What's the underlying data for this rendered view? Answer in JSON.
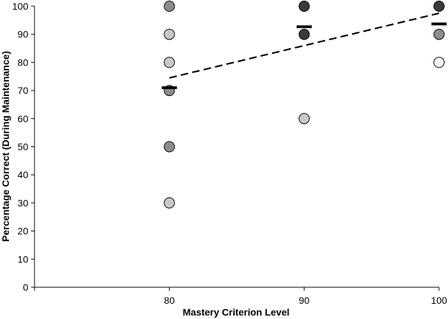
{
  "chart_data": {
    "type": "scatter",
    "title": "",
    "xlabel": "Mastery Criterion Level",
    "ylabel": "Percentage Correct (During Maintenance)",
    "x_ticks": [
      "80",
      "90",
      "100"
    ],
    "y_ticks": [
      "0",
      "10",
      "20",
      "30",
      "40",
      "50",
      "60",
      "70",
      "80",
      "90",
      "100"
    ],
    "xlim": [
      70,
      100
    ],
    "ylim": [
      0,
      100
    ],
    "grid": false,
    "legend": "none",
    "points": [
      {
        "x": 80,
        "y": 100,
        "color": "#8c8c8c"
      },
      {
        "x": 80,
        "y": 90,
        "color": "#c8c8c8"
      },
      {
        "x": 80,
        "y": 80,
        "color": "#c8c8c8"
      },
      {
        "x": 80,
        "y": 70,
        "color": "#8c8c8c"
      },
      {
        "x": 80,
        "y": 50,
        "color": "#8c8c8c"
      },
      {
        "x": 80,
        "y": 30,
        "color": "#c8c8c8"
      },
      {
        "x": 90,
        "y": 100,
        "color": "#3a3a3a"
      },
      {
        "x": 90,
        "y": 90,
        "color": "#3a3a3a"
      },
      {
        "x": 90,
        "y": 60,
        "color": "#c8c8c8"
      },
      {
        "x": 100,
        "y": 100,
        "color": "#3a3a3a"
      },
      {
        "x": 100,
        "y": 90,
        "color": "#8c8c8c"
      },
      {
        "x": 100,
        "y": 80,
        "color": "#f2f2f2"
      }
    ],
    "means": [
      {
        "x": 80,
        "y": 71
      },
      {
        "x": 90,
        "y": 92.7
      },
      {
        "x": 100,
        "y": 93.7
      }
    ],
    "trend_line": {
      "style": "dashed",
      "from": {
        "x": 80,
        "y": 74.5
      },
      "to": {
        "x": 100,
        "y": 97.5
      }
    }
  }
}
